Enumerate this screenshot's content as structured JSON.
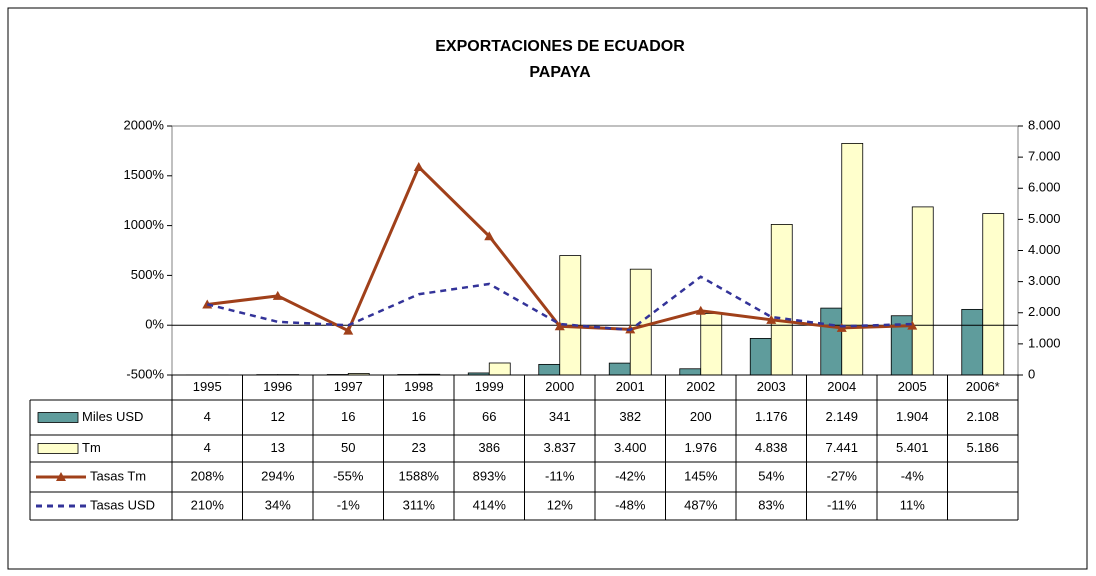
{
  "chart_data": {
    "type": "bar",
    "title": "EXPORTACIONES DE ECUADOR",
    "subtitle": "PAPAYA",
    "categories": [
      "1995",
      "1996",
      "1997",
      "1998",
      "1999",
      "2000",
      "2001",
      "2002",
      "2003",
      "2004",
      "2005",
      "2006*"
    ],
    "ylim": [
      -500,
      2000
    ],
    "yticks": [
      {
        "value": -500,
        "label": "-500%"
      },
      {
        "value": 0,
        "label": "0%"
      },
      {
        "value": 500,
        "label": "500%"
      },
      {
        "value": 1000,
        "label": "1000%"
      },
      {
        "value": 1500,
        "label": "1500%"
      },
      {
        "value": 2000,
        "label": "2000%"
      }
    ],
    "y2lim": [
      0,
      8000
    ],
    "y2ticks": [
      0,
      {
        "value": 1000,
        "label": "1.000"
      },
      {
        "value": 2000,
        "label": "2.000"
      },
      {
        "value": 3000,
        "label": "3.000"
      },
      {
        "value": 4000,
        "label": "4.000"
      },
      {
        "value": 5000,
        "label": "5.000"
      },
      {
        "value": 6000,
        "label": "6.000"
      },
      {
        "value": 7000,
        "label": "7.000"
      },
      {
        "value": 8000,
        "label": "8.000"
      }
    ],
    "data_table": true,
    "series": [
      {
        "name": "Miles USD",
        "type": "bar",
        "axis": "y2",
        "color": "#5f9c9c",
        "values": [
          4,
          12,
          16,
          16,
          66,
          341,
          382,
          200,
          1176,
          2149,
          1904,
          2108
        ],
        "value_labels": [
          "4",
          "12",
          "16",
          "16",
          "66",
          "341",
          "382",
          "200",
          "1.176",
          "2.149",
          "1.904",
          "2.108"
        ]
      },
      {
        "name": "Tm",
        "type": "bar",
        "axis": "y2",
        "color": "#ffffcc",
        "values": [
          4,
          13,
          50,
          23,
          386,
          3837,
          3400,
          1976,
          4838,
          7441,
          5401,
          5186
        ],
        "value_labels": [
          "4",
          "13",
          "50",
          "23",
          "386",
          "3.837",
          "3.400",
          "1.976",
          "4.838",
          "7.441",
          "5.401",
          "5.186"
        ]
      },
      {
        "name": "Tasas Tm",
        "type": "line",
        "color": "#a0401a",
        "marker": "triangle",
        "line_style": "solid",
        "values": [
          208,
          294,
          -55,
          1588,
          893,
          -11,
          -42,
          145,
          54,
          -27,
          -4,
          null
        ],
        "value_labels": [
          "208%",
          "294%",
          "-55%",
          "1588%",
          "893%",
          "-11%",
          "-42%",
          "145%",
          "54%",
          "-27%",
          "-4%",
          null
        ]
      },
      {
        "name": "Tasas USD",
        "type": "line",
        "color": "#333399",
        "marker": null,
        "line_style": "dashed",
        "values": [
          210,
          34,
          -1,
          311,
          414,
          12,
          -48,
          487,
          83,
          -11,
          11,
          null
        ],
        "value_labels": [
          "210%",
          "34%",
          "-1%",
          "311%",
          "414%",
          "12%",
          "-48%",
          "487%",
          "83%",
          "-11%",
          "11%",
          null
        ]
      }
    ]
  }
}
